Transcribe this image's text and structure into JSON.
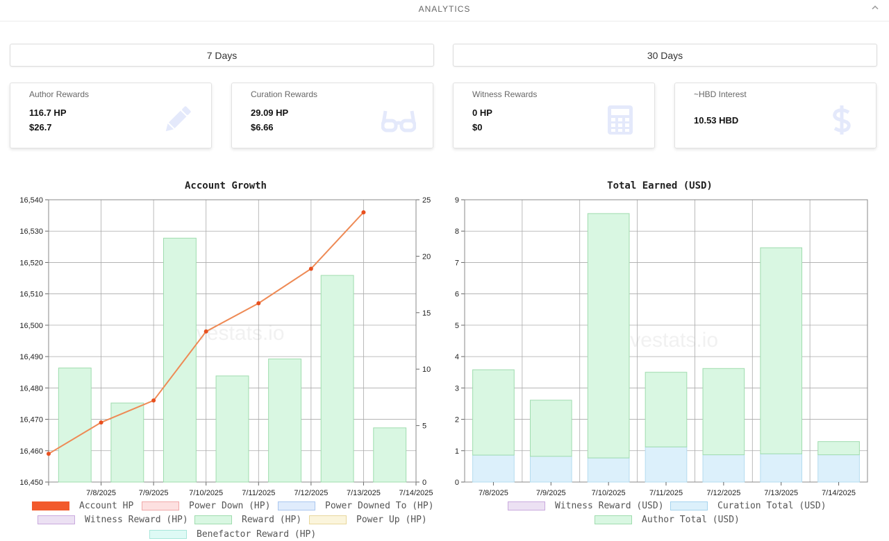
{
  "header": {
    "title": "ANALYTICS"
  },
  "ranges": {
    "days7": "7 Days",
    "days30": "30 Days"
  },
  "cards": [
    {
      "label": "Author Rewards",
      "line1": "116.7 HP",
      "line2": "$26.7",
      "icon": "pencil-icon"
    },
    {
      "label": "Curation Rewards",
      "line1": "29.09 HP",
      "line2": "$6.66",
      "icon": "glasses-icon"
    },
    {
      "label": "Witness Rewards",
      "line1": "0 HP",
      "line2": "$0",
      "icon": "calculator-icon"
    },
    {
      "label": "~HBD Interest",
      "line1": "10.53 HBD",
      "icon": "dollar-icon"
    }
  ],
  "watermark": "hivestats.io",
  "colors": {
    "line": "#ee8a55",
    "point": "#e8501f",
    "reward_fill": "#d9f7e2",
    "reward_stroke": "#9fdcae",
    "curation_fill": "#dcf0fb",
    "grid": "#aaaaaa"
  },
  "chart_data": [
    {
      "type": "bar",
      "title": "Account Growth",
      "categories": [
        "7/8/2025",
        "7/9/2025",
        "7/10/2025",
        "7/11/2025",
        "7/12/2025",
        "7/13/2025",
        "7/14/2025"
      ],
      "y_left": {
        "ticks": [
          "16,450",
          "16,460",
          "16,470",
          "16,480",
          "16,490",
          "16,500",
          "16,510",
          "16,520",
          "16,530",
          "16,540"
        ],
        "range": [
          16450,
          16540
        ]
      },
      "y_right": {
        "ticks": [
          "0",
          "5",
          "10",
          "15",
          "20",
          "25"
        ],
        "range": [
          0,
          25
        ]
      },
      "series": [
        {
          "name": "Account HP",
          "type": "line",
          "axis": "left",
          "values": [
            16459,
            16469,
            16476,
            16498,
            16507,
            16518,
            16536
          ]
        },
        {
          "name": "Reward (HP)",
          "type": "bar",
          "axis": "right",
          "values": [
            10.1,
            7.0,
            21.6,
            9.4,
            10.9,
            18.3,
            4.8
          ]
        }
      ],
      "legend": [
        {
          "label": "Account HP",
          "fill": "#f25a2c",
          "stroke": "#f25a2c"
        },
        {
          "label": "Power Down (HP)",
          "fill": "#fde0e0",
          "stroke": "#f0a8a8"
        },
        {
          "label": "Power Downed To (HP)",
          "fill": "#e0ecfc",
          "stroke": "#a9c6ef"
        },
        {
          "label": "Witness Reward (HP)",
          "fill": "#ece1f3",
          "stroke": "#c9a9de"
        },
        {
          "label": "Reward (HP)",
          "fill": "#d9f7e2",
          "stroke": "#9fdcae"
        },
        {
          "label": "Power Up (HP)",
          "fill": "#fbf5dc",
          "stroke": "#e8d79c"
        },
        {
          "label": "Benefactor Reward (HP)",
          "fill": "#defaf5",
          "stroke": "#a8e6da"
        }
      ]
    },
    {
      "type": "bar",
      "title": "Total Earned (USD)",
      "categories": [
        "7/8/2025",
        "7/9/2025",
        "7/10/2025",
        "7/11/2025",
        "7/12/2025",
        "7/13/2025",
        "7/14/2025"
      ],
      "y": {
        "ticks": [
          "0",
          "1",
          "2",
          "3",
          "4",
          "5",
          "6",
          "7",
          "8",
          "9"
        ],
        "range": [
          0,
          9
        ]
      },
      "stacked": true,
      "series": [
        {
          "name": "Witness Reward (USD)",
          "values": [
            0,
            0,
            0,
            0,
            0,
            0,
            0
          ]
        },
        {
          "name": "Curation Total (USD)",
          "values": [
            0.86,
            0.82,
            0.77,
            1.12,
            0.87,
            0.9,
            0.87
          ]
        },
        {
          "name": "Author Total (USD)",
          "values": [
            2.72,
            1.79,
            7.79,
            2.38,
            2.75,
            6.57,
            0.42
          ]
        }
      ],
      "legend": [
        {
          "label": "Witness Reward (USD)",
          "fill": "#ece1f3",
          "stroke": "#c9a9de"
        },
        {
          "label": "Curation Total (USD)",
          "fill": "#dcf0fb",
          "stroke": "#a5d3ee"
        },
        {
          "label": "Author Total (USD)",
          "fill": "#d9f7e2",
          "stroke": "#9fdcae"
        }
      ]
    }
  ]
}
